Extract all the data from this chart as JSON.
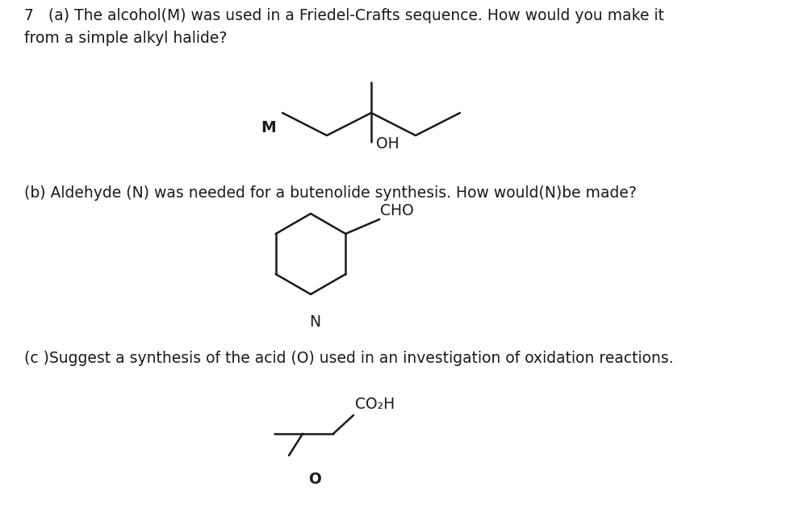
{
  "bg_color": "#ffffff",
  "text_color": "#1a1a1a",
  "line_color": "#1a1a1a",
  "line_width": 1.8,
  "font_size_body": 13.5,
  "font_size_label": 13.5,
  "q_a": "7   (a) The alcohol(M) was used in a Friedel-Crafts sequence. How would you make it\nfrom a simple alkyl halide?",
  "q_b": "(b) Aldehyde (N) was needed for a butenolide synthesis. How would(N)be made?",
  "q_c": "(c )Suggest a synthesis of the acid (O) used in an investigation of oxidation reactions."
}
